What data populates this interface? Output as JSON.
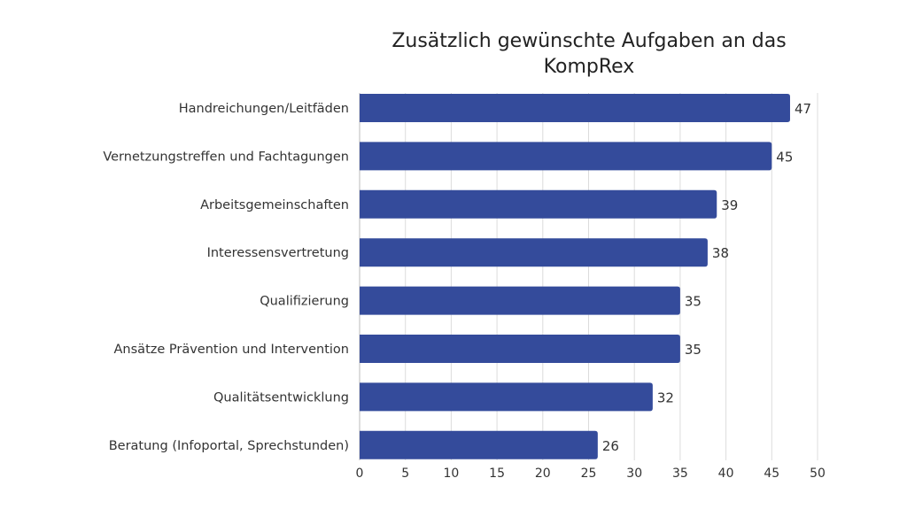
{
  "chart_data": {
    "type": "bar",
    "orientation": "horizontal",
    "title": "Zusätzlich gewünschte Aufgaben an das KompRex",
    "categories": [
      "Handreichungen/Leitfäden",
      "Vernetzungstreffen und Fachtagungen",
      "Arbeitsgemeinschaften",
      "Interessensvertretung",
      "Qualifizierung",
      "Ansätze Prävention und Intervention",
      "Qualitätsentwicklung",
      "Beratung (Infoportal, Sprechstunden)"
    ],
    "values": [
      47,
      45,
      39,
      38,
      35,
      35,
      32,
      26
    ],
    "xlabel": "",
    "ylabel": "",
    "xlim": [
      0,
      50
    ],
    "xticks": [
      0,
      5,
      10,
      15,
      20,
      25,
      30,
      35,
      40,
      45,
      50
    ],
    "grid": true,
    "data_labels": true,
    "bar_color": "#344b9b",
    "grid_color": "#dcdcdc"
  }
}
